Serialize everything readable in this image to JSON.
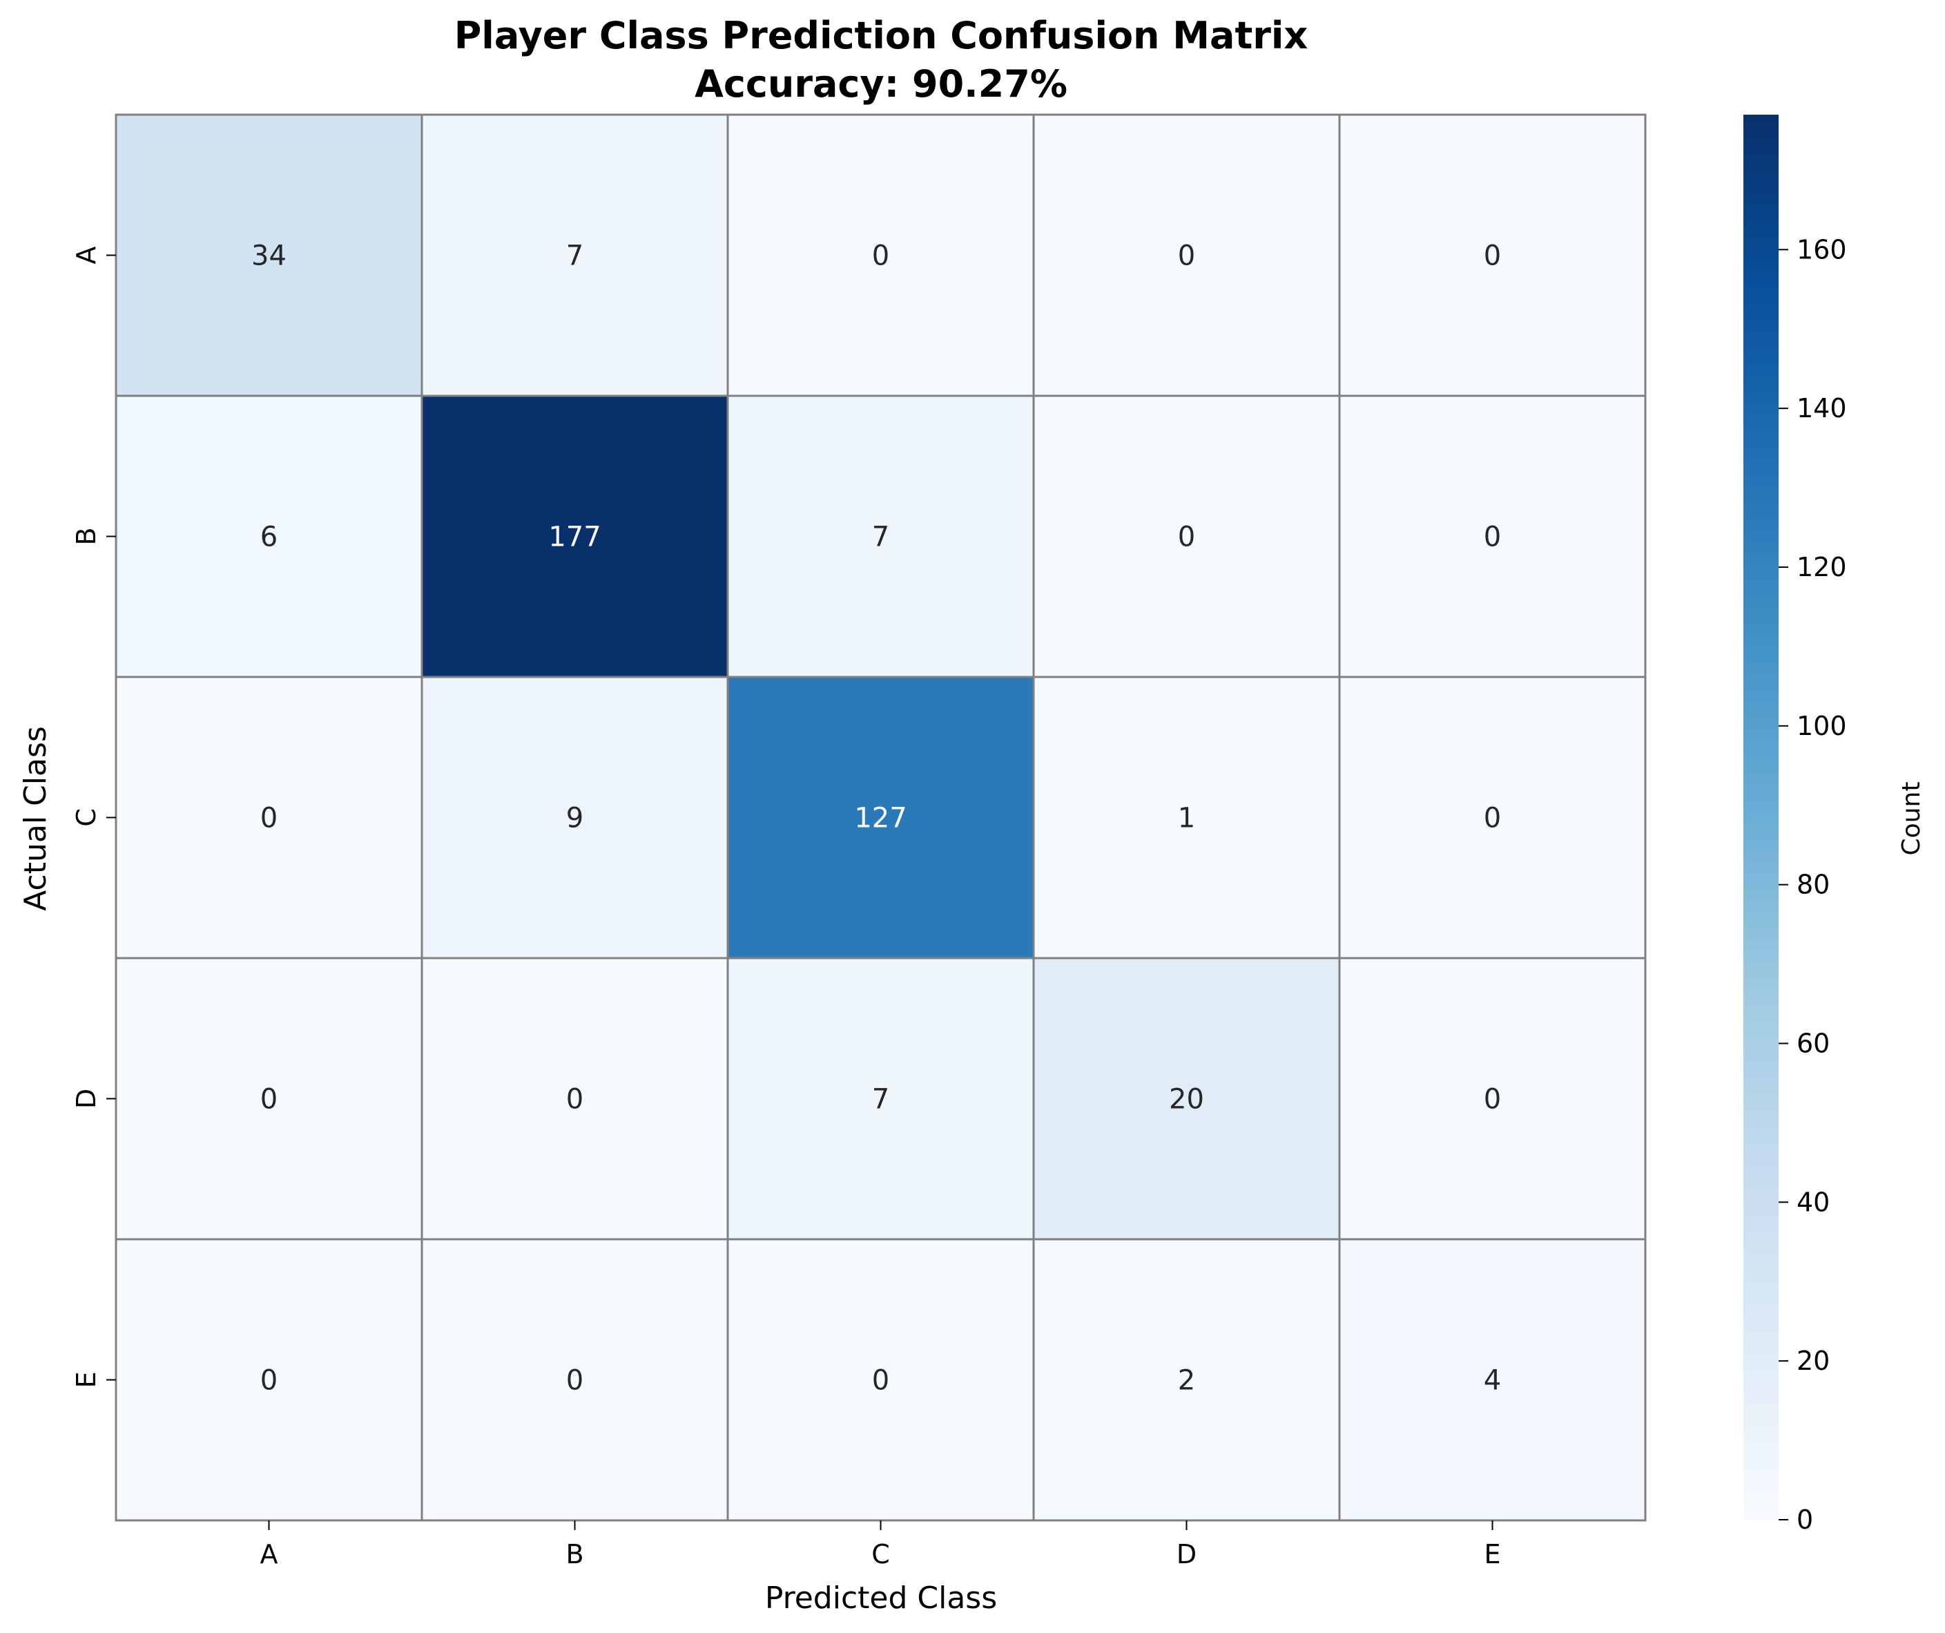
{
  "chart_data": {
    "type": "heatmap",
    "title_line1": "Player Class Prediction Confusion Matrix",
    "title_line2": "Accuracy: 90.27%",
    "xlabel": "Predicted Class",
    "ylabel": "Actual Class",
    "x_categories": [
      "A",
      "B",
      "C",
      "D",
      "E"
    ],
    "y_categories": [
      "A",
      "B",
      "C",
      "D",
      "E"
    ],
    "matrix": [
      [
        34,
        7,
        0,
        0,
        0
      ],
      [
        6,
        177,
        7,
        0,
        0
      ],
      [
        0,
        9,
        127,
        1,
        0
      ],
      [
        0,
        0,
        7,
        20,
        0
      ],
      [
        0,
        0,
        0,
        2,
        4
      ]
    ],
    "colorbar": {
      "label": "Count",
      "range": [
        0,
        177
      ],
      "ticks": [
        0,
        20,
        40,
        60,
        80,
        100,
        120,
        140,
        160
      ],
      "colormap": "Blues"
    },
    "cell_border_color": "#808080"
  }
}
